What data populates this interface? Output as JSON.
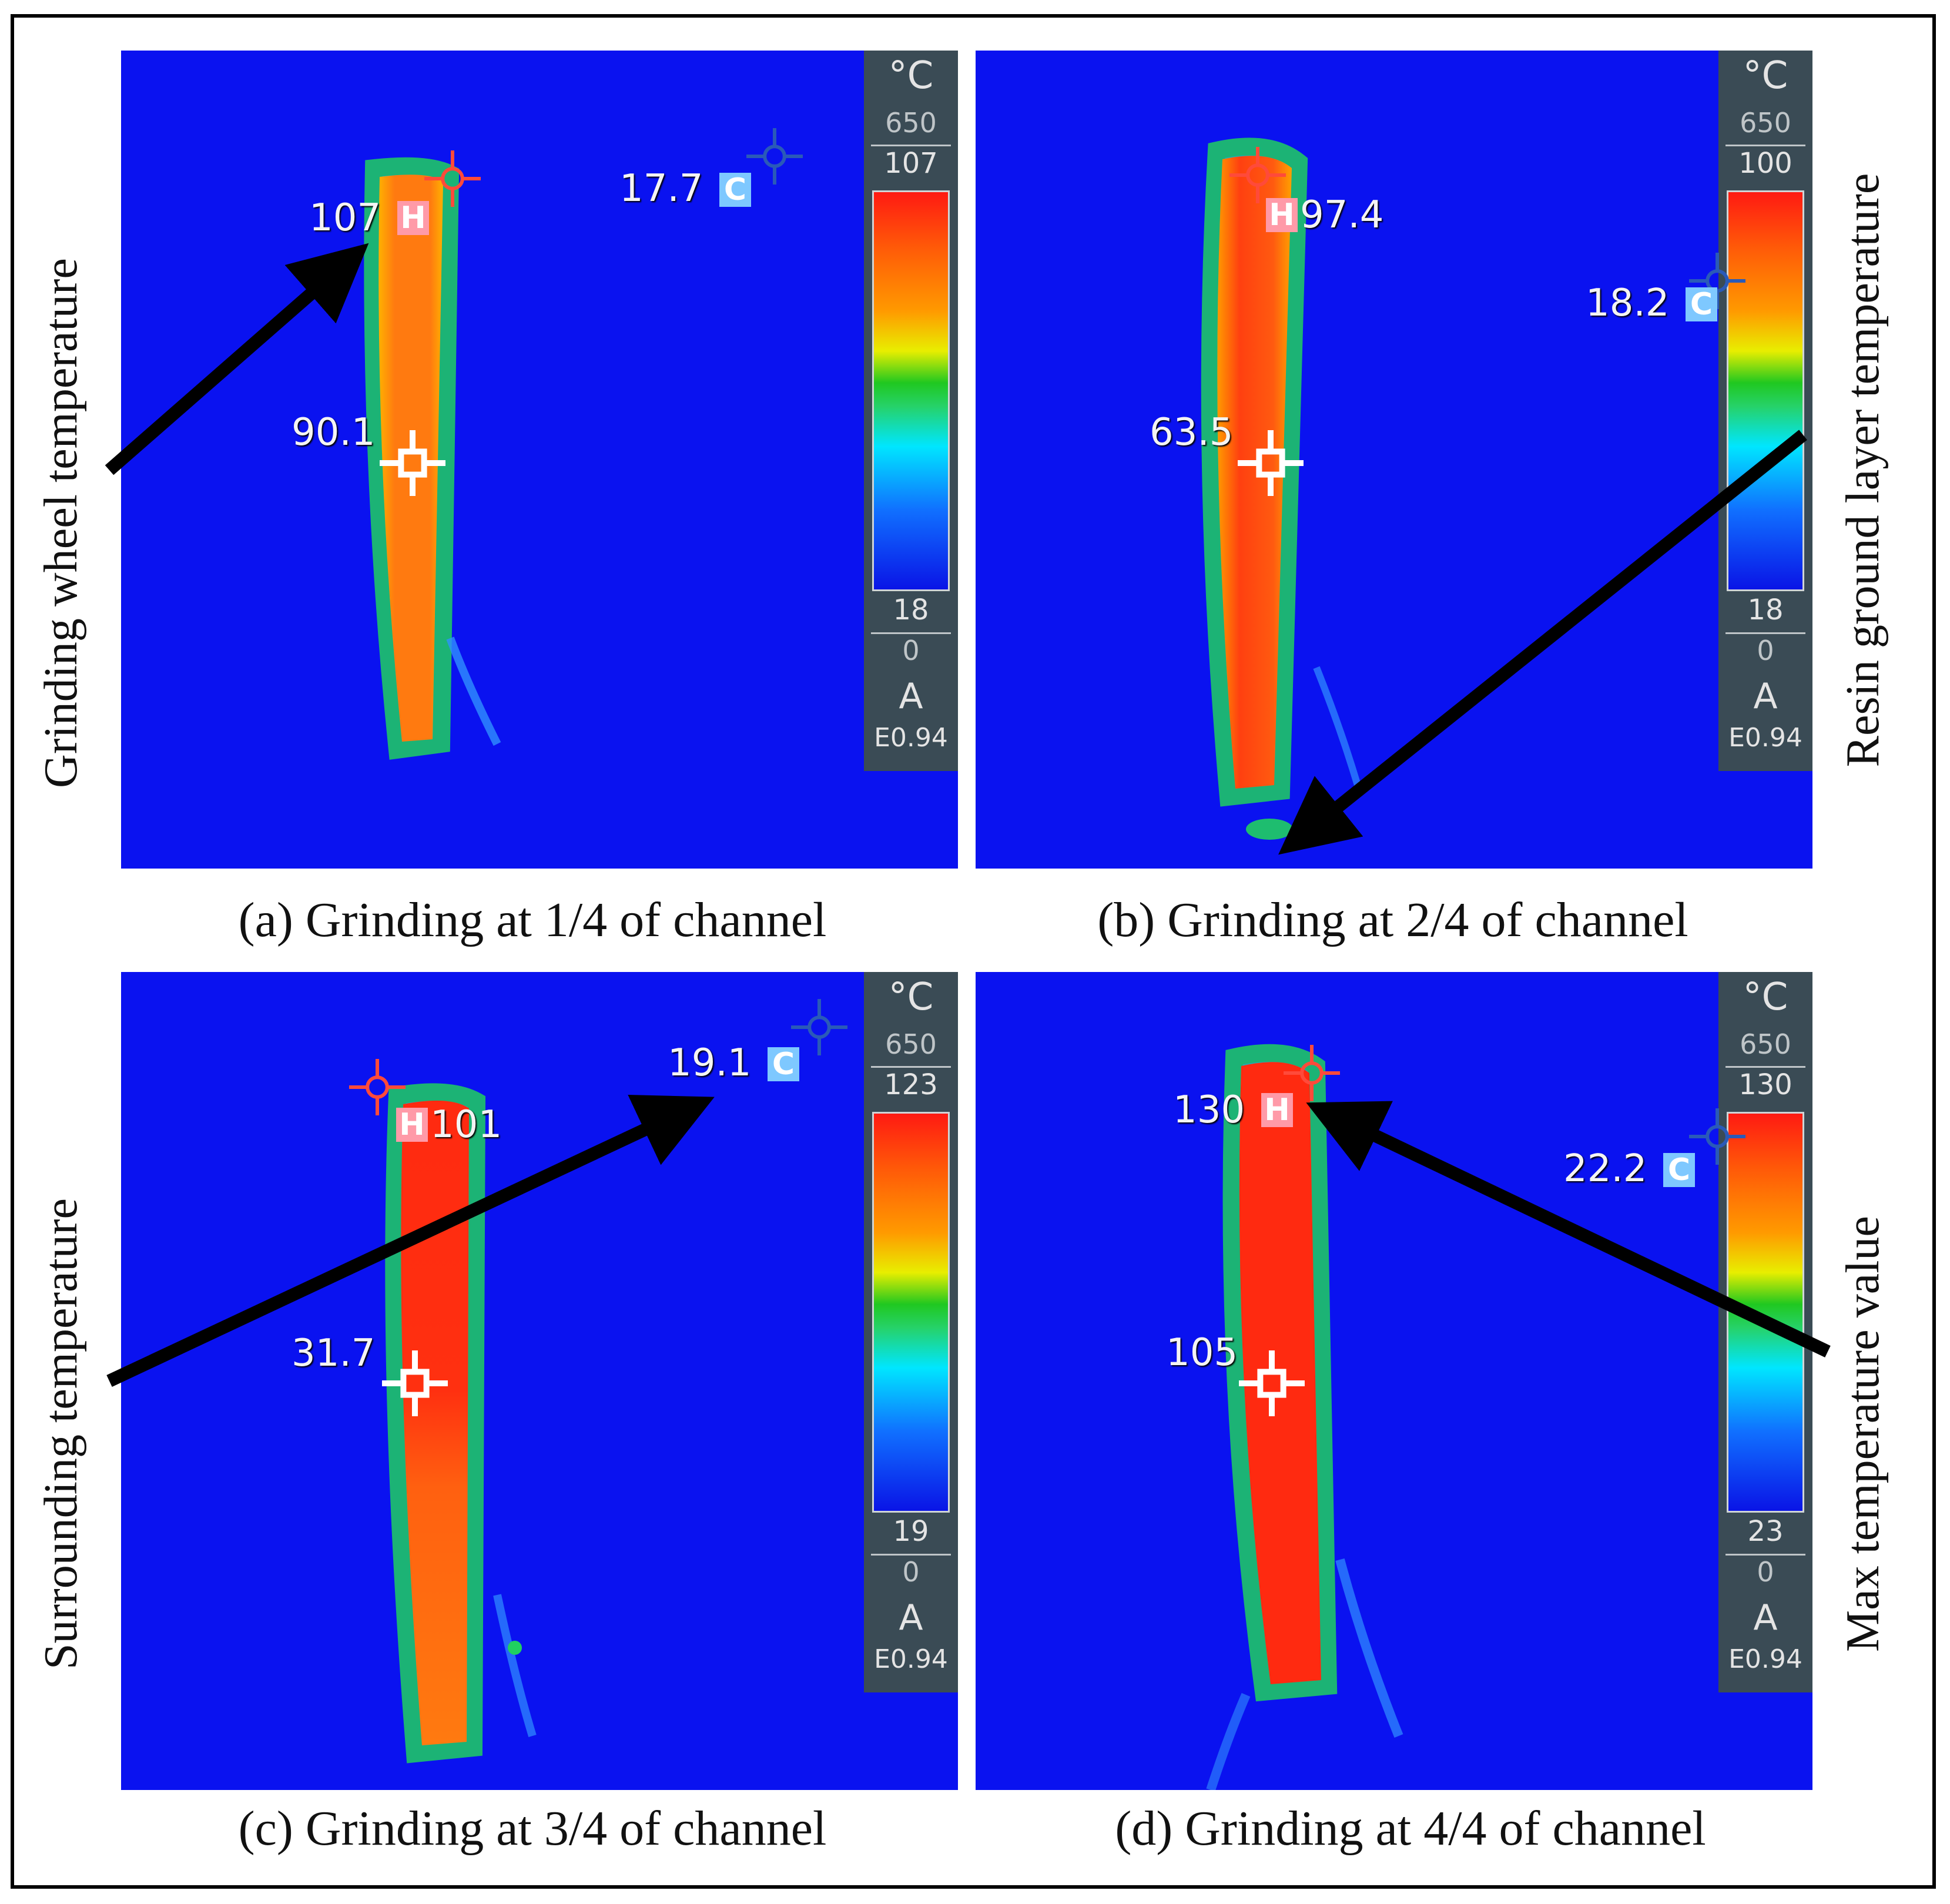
{
  "captions": {
    "a": "(a) Grinding at 1/4 of channel",
    "b": "(b) Grinding at 2/4 of channel",
    "c": "(c) Grinding at 3/4 of channel",
    "d": "(d) Grinding at 4/4 of channel"
  },
  "annotations": {
    "left_top": "Grinding wheel temperature",
    "right_top": "Resin ground layer temperature",
    "left_bottom": "Surrounding temperature",
    "right_bottom": "Max temperature value"
  },
  "panels": {
    "a": {
      "unit": "°C",
      "range_max": "650",
      "scale_high": "107",
      "scale_low": "18",
      "range_min": "0",
      "mode": "A",
      "emissivity": "E0.94",
      "hot_value": "107",
      "center_value": "90.1",
      "cold_value": "17.7",
      "hot_badge": "H",
      "cold_badge": "C"
    },
    "b": {
      "unit": "°C",
      "range_max": "650",
      "scale_high": "100",
      "scale_low": "18",
      "range_min": "0",
      "mode": "A",
      "emissivity": "E0.94",
      "hot_value": "97.4",
      "center_value": "63.5",
      "cold_value": "18.2",
      "hot_badge": "H",
      "cold_badge": "C"
    },
    "c": {
      "unit": "°C",
      "range_max": "650",
      "scale_high": "123",
      "scale_low": "19",
      "range_min": "0",
      "mode": "A",
      "emissivity": "E0.94",
      "hot_value": "101",
      "center_value": "31.7",
      "cold_value": "19.1",
      "hot_badge": "H",
      "cold_badge": "C"
    },
    "d": {
      "unit": "°C",
      "range_max": "650",
      "scale_high": "130",
      "scale_low": "23",
      "range_min": "0",
      "mode": "A",
      "emissivity": "E0.94",
      "hot_value": "130",
      "center_value": "105",
      "cold_value": "22.2",
      "hot_badge": "H",
      "cold_badge": "C"
    }
  },
  "colors": {
    "background": "#0a12f0",
    "wheel_orange": "#ff7a10",
    "wheel_red": "#ff2a10",
    "edge_green": "#22d060",
    "arrow": "#000000"
  }
}
